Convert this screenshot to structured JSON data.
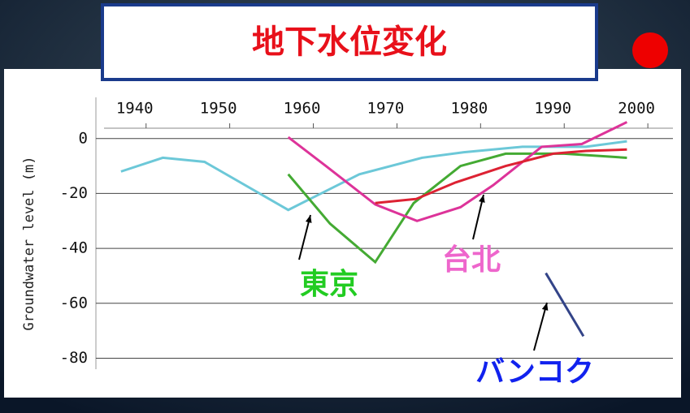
{
  "chart_data": {
    "type": "line",
    "title": "地下水位変化",
    "y_label": "Groundwater level (m)",
    "xlim": [
      1934,
      2003
    ],
    "ylim": [
      -84,
      15
    ],
    "xticks": [
      1940,
      1950,
      1960,
      1970,
      1980,
      1990,
      2000
    ],
    "yticks": [
      0,
      -20,
      -40,
      -60,
      -80
    ],
    "grid": true,
    "series": [
      {
        "color": "#6cc8d8",
        "x": [
          1937,
          1942,
          1947,
          1957,
          1965.5,
          1973,
          1978,
          1985,
          1992.6,
          1997.5
        ],
        "values": [
          -12,
          -7,
          -8.5,
          -26,
          -13,
          -7,
          -5,
          -3,
          -3,
          -1
        ]
      },
      {
        "name": "東京",
        "color": "#44aa33",
        "x": [
          1957,
          1962,
          1967.4,
          1972,
          1977.6,
          1983,
          1990,
          1997.5
        ],
        "values": [
          -13,
          -31,
          -45,
          -23.5,
          -10,
          -5.5,
          -5.5,
          -7
        ]
      },
      {
        "name": "台北",
        "color": "#dd3399",
        "x": [
          1957,
          1961.5,
          1967.4,
          1972.4,
          1977.6,
          1981.5,
          1987.3,
          1992.1,
          1997.5
        ],
        "values": [
          0.5,
          -10,
          -24,
          -30,
          -25,
          -17,
          -3,
          -2,
          6
        ]
      },
      {
        "color": "#dd2233",
        "x": [
          1967.4,
          1972.3,
          1977,
          1983,
          1988.7,
          1992.6,
          1997.5
        ],
        "values": [
          -23.5,
          -22,
          -16,
          -10,
          -5.5,
          -4.5,
          -4
        ]
      },
      {
        "name": "バンコク",
        "color": "#334488",
        "x": [
          1987.8,
          1992.3
        ],
        "values": [
          -49,
          -72
        ]
      }
    ]
  }
}
